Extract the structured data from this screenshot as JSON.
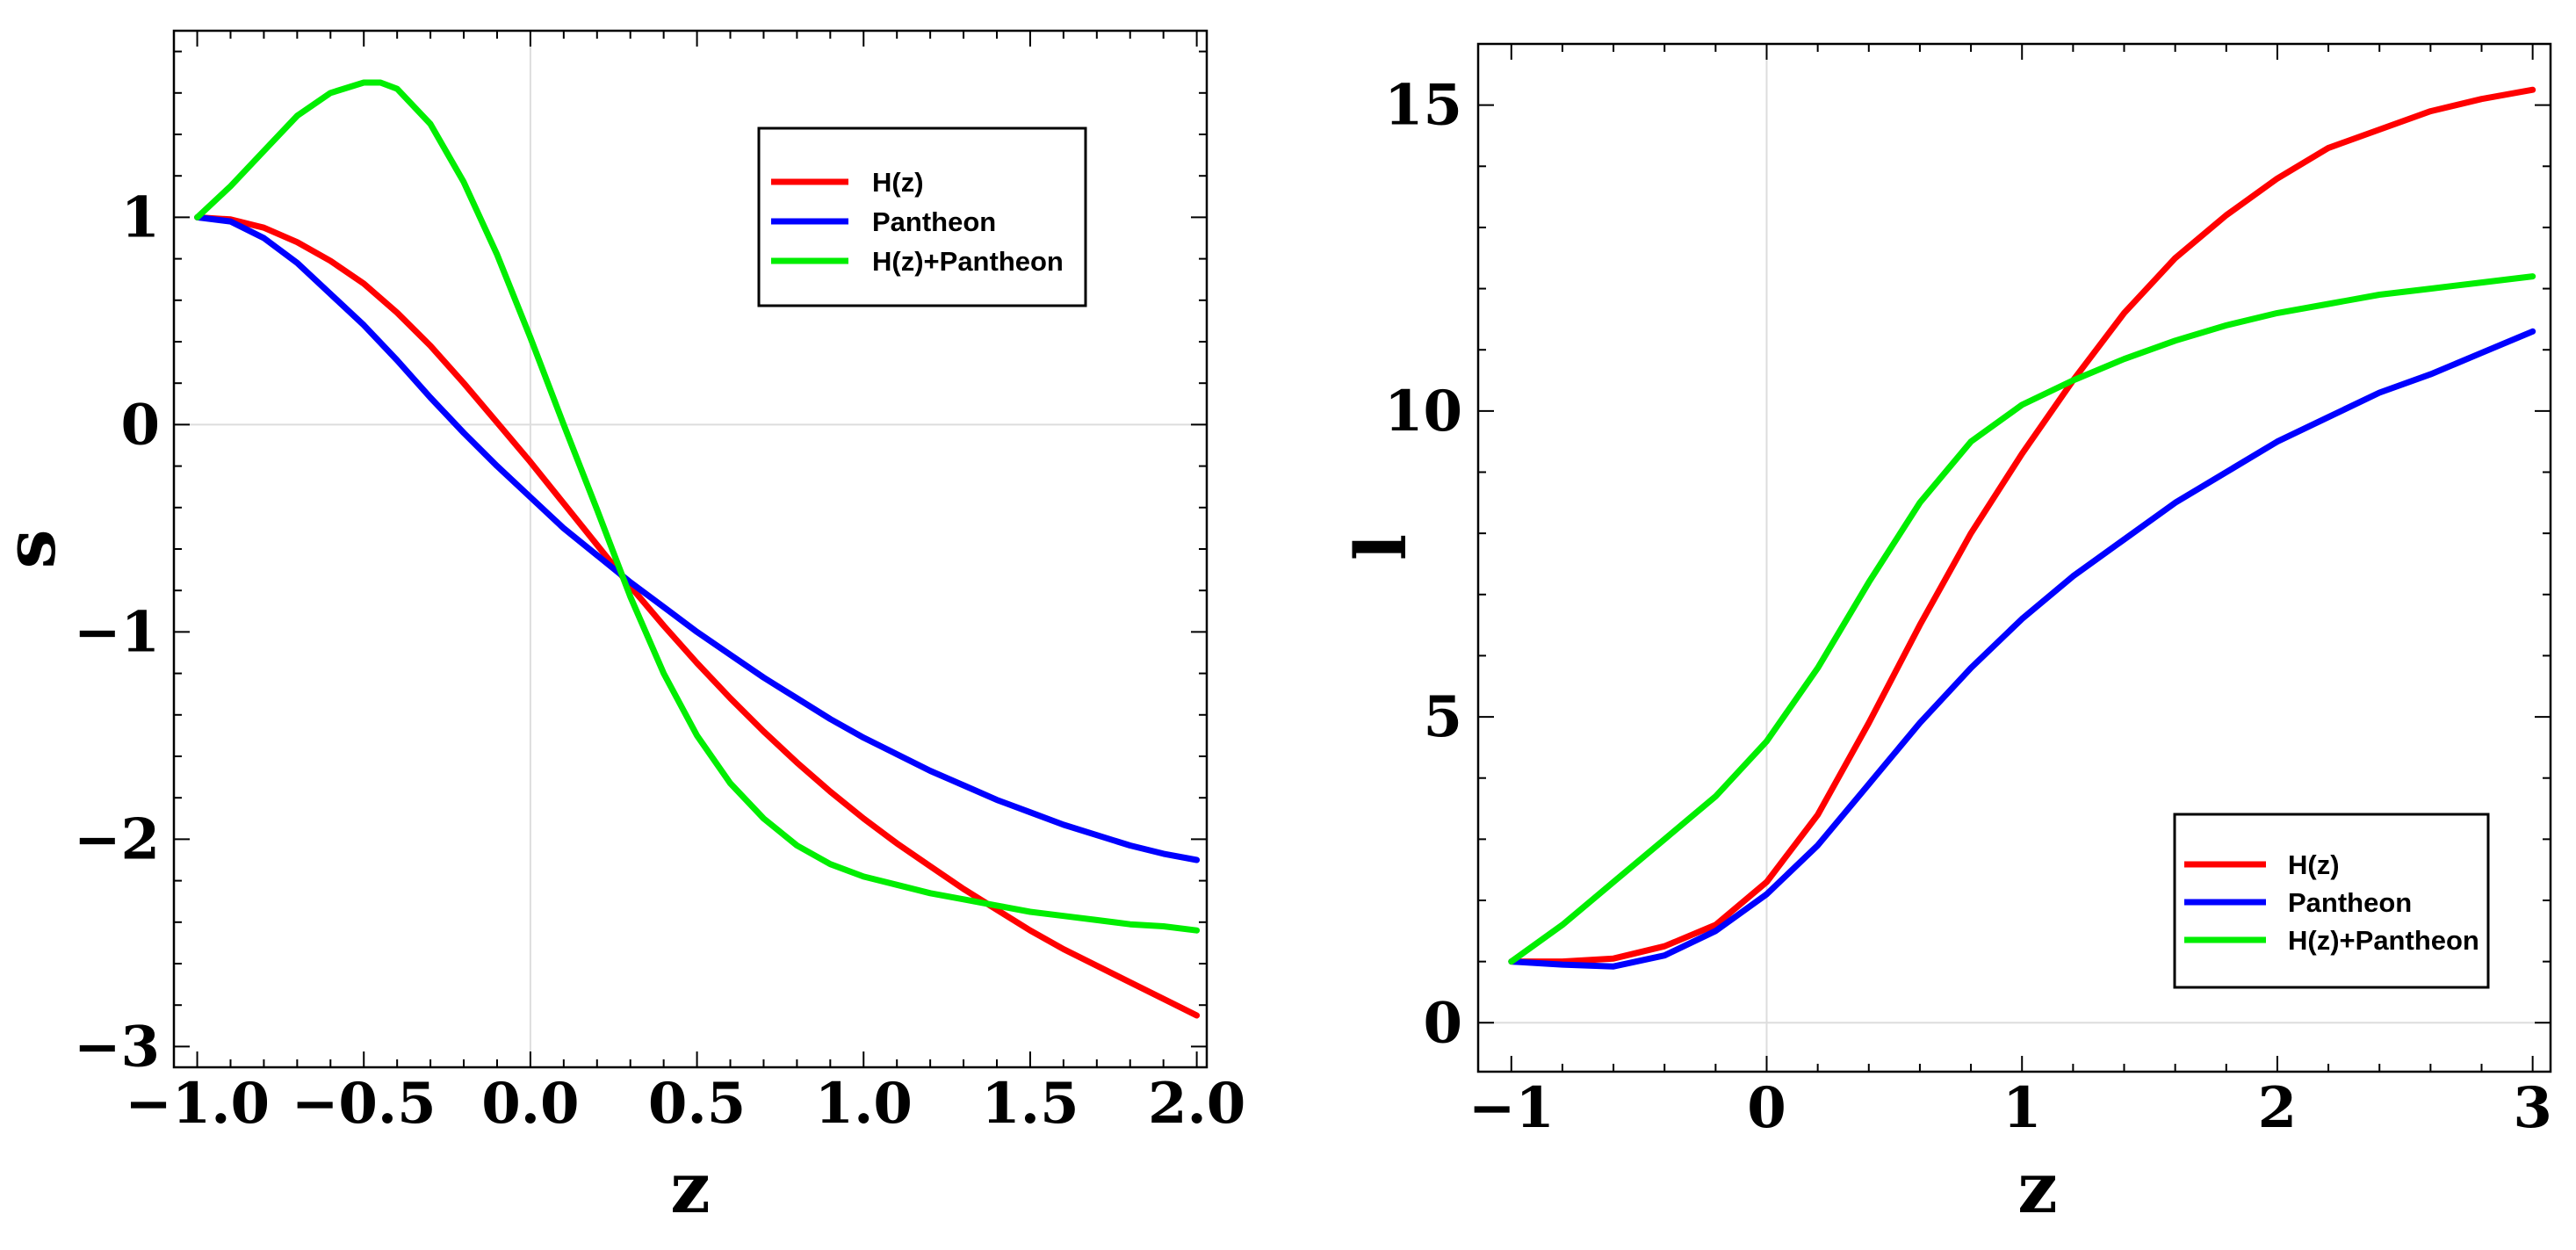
{
  "chart_data": [
    {
      "type": "line",
      "xlabel": "z",
      "ylabel": "s",
      "xlim": [
        -1.07,
        2.03
      ],
      "ylim": [
        -3.1,
        1.9
      ],
      "xticks": [
        -1.0,
        -0.5,
        0.0,
        0.5,
        1.0,
        1.5,
        2.0
      ],
      "xtick_labels": [
        "−1.0",
        "−0.5",
        "0.0",
        "0.5",
        "1.0",
        "1.5",
        "2.0"
      ],
      "yticks": [
        -3,
        -2,
        -1,
        0,
        1
      ],
      "ytick_labels": [
        "−3",
        "−2",
        "−1",
        "0",
        "1"
      ],
      "legend_position": "top-right",
      "series": [
        {
          "name": "H(z)",
          "color": "#ff0000",
          "x": [
            -1.0,
            -0.9,
            -0.8,
            -0.7,
            -0.6,
            -0.5,
            -0.4,
            -0.3,
            -0.2,
            -0.1,
            0.0,
            0.1,
            0.2,
            0.3,
            0.4,
            0.5,
            0.6,
            0.7,
            0.8,
            0.9,
            1.0,
            1.1,
            1.2,
            1.3,
            1.4,
            1.5,
            1.6,
            1.7,
            1.8,
            1.9,
            2.0
          ],
          "y": [
            1.0,
            0.99,
            0.95,
            0.88,
            0.79,
            0.68,
            0.54,
            0.38,
            0.2,
            0.01,
            -0.18,
            -0.38,
            -0.58,
            -0.78,
            -0.97,
            -1.15,
            -1.32,
            -1.48,
            -1.63,
            -1.77,
            -1.9,
            -2.02,
            -2.13,
            -2.24,
            -2.34,
            -2.44,
            -2.53,
            -2.61,
            -2.69,
            -2.77,
            -2.85
          ]
        },
        {
          "name": "Pantheon",
          "color": "#0000ff",
          "x": [
            -1.0,
            -0.9,
            -0.8,
            -0.7,
            -0.6,
            -0.5,
            -0.4,
            -0.3,
            -0.2,
            -0.1,
            0.0,
            0.1,
            0.2,
            0.3,
            0.4,
            0.5,
            0.6,
            0.7,
            0.8,
            0.9,
            1.0,
            1.1,
            1.2,
            1.3,
            1.4,
            1.5,
            1.6,
            1.7,
            1.8,
            1.9,
            2.0
          ],
          "y": [
            1.0,
            0.98,
            0.9,
            0.78,
            0.63,
            0.48,
            0.31,
            0.13,
            -0.04,
            -0.2,
            -0.35,
            -0.5,
            -0.63,
            -0.76,
            -0.88,
            -1.0,
            -1.11,
            -1.22,
            -1.32,
            -1.42,
            -1.51,
            -1.59,
            -1.67,
            -1.74,
            -1.81,
            -1.87,
            -1.93,
            -1.98,
            -2.03,
            -2.07,
            -2.1
          ]
        },
        {
          "name": "H(z)+Pantheon",
          "color": "#00ee00",
          "x": [
            -1.0,
            -0.9,
            -0.8,
            -0.7,
            -0.6,
            -0.5,
            -0.45,
            -0.4,
            -0.3,
            -0.2,
            -0.1,
            0.0,
            0.1,
            0.2,
            0.3,
            0.4,
            0.5,
            0.6,
            0.7,
            0.8,
            0.9,
            1.0,
            1.1,
            1.2,
            1.3,
            1.4,
            1.5,
            1.6,
            1.7,
            1.8,
            1.9,
            2.0
          ],
          "y": [
            1.0,
            1.15,
            1.32,
            1.49,
            1.6,
            1.65,
            1.65,
            1.62,
            1.45,
            1.17,
            0.82,
            0.42,
            0.0,
            -0.41,
            -0.83,
            -1.2,
            -1.5,
            -1.73,
            -1.9,
            -2.03,
            -2.12,
            -2.18,
            -2.22,
            -2.26,
            -2.29,
            -2.32,
            -2.35,
            -2.37,
            -2.39,
            -2.41,
            -2.42,
            -2.44
          ]
        }
      ]
    },
    {
      "type": "line",
      "xlabel": "z",
      "ylabel": "l",
      "xlim": [
        -1.13,
        3.07
      ],
      "ylim": [
        -0.8,
        16.0
      ],
      "xticks": [
        -1,
        0,
        1,
        2,
        3
      ],
      "xtick_labels": [
        "−1",
        "0",
        "1",
        "2",
        "3"
      ],
      "yticks": [
        0,
        5,
        10,
        15
      ],
      "ytick_labels": [
        "0",
        "5",
        "10",
        "15"
      ],
      "legend_position": "bottom-right",
      "series": [
        {
          "name": "H(z)",
          "color": "#ff0000",
          "x": [
            -1.0,
            -0.8,
            -0.6,
            -0.4,
            -0.2,
            0.0,
            0.2,
            0.4,
            0.6,
            0.8,
            1.0,
            1.2,
            1.4,
            1.6,
            1.8,
            2.0,
            2.2,
            2.4,
            2.6,
            2.8,
            3.0
          ],
          "y": [
            1.0,
            1.0,
            1.05,
            1.25,
            1.6,
            2.3,
            3.4,
            4.9,
            6.5,
            8.0,
            9.3,
            10.5,
            11.6,
            12.5,
            13.2,
            13.8,
            14.3,
            14.6,
            14.9,
            15.1,
            15.25
          ]
        },
        {
          "name": "Pantheon",
          "color": "#0000ff",
          "x": [
            -1.0,
            -0.8,
            -0.6,
            -0.4,
            -0.2,
            0.0,
            0.2,
            0.4,
            0.6,
            0.8,
            1.0,
            1.2,
            1.4,
            1.6,
            1.8,
            2.0,
            2.2,
            2.4,
            2.6,
            2.8,
            3.0
          ],
          "y": [
            1.0,
            0.95,
            0.92,
            1.1,
            1.5,
            2.1,
            2.9,
            3.9,
            4.9,
            5.8,
            6.6,
            7.3,
            7.9,
            8.5,
            9.0,
            9.5,
            9.9,
            10.3,
            10.6,
            10.95,
            11.3
          ]
        },
        {
          "name": "H(z)+Pantheon",
          "color": "#00ee00",
          "x": [
            -1.0,
            -0.8,
            -0.6,
            -0.4,
            -0.2,
            0.0,
            0.2,
            0.4,
            0.6,
            0.8,
            1.0,
            1.2,
            1.4,
            1.6,
            1.8,
            2.0,
            2.2,
            2.4,
            2.6,
            2.8,
            3.0
          ],
          "y": [
            1.0,
            1.6,
            2.3,
            3.0,
            3.7,
            4.6,
            5.8,
            7.2,
            8.5,
            9.5,
            10.1,
            10.5,
            10.85,
            11.15,
            11.4,
            11.6,
            11.75,
            11.9,
            12.0,
            12.1,
            12.2
          ]
        }
      ]
    }
  ]
}
